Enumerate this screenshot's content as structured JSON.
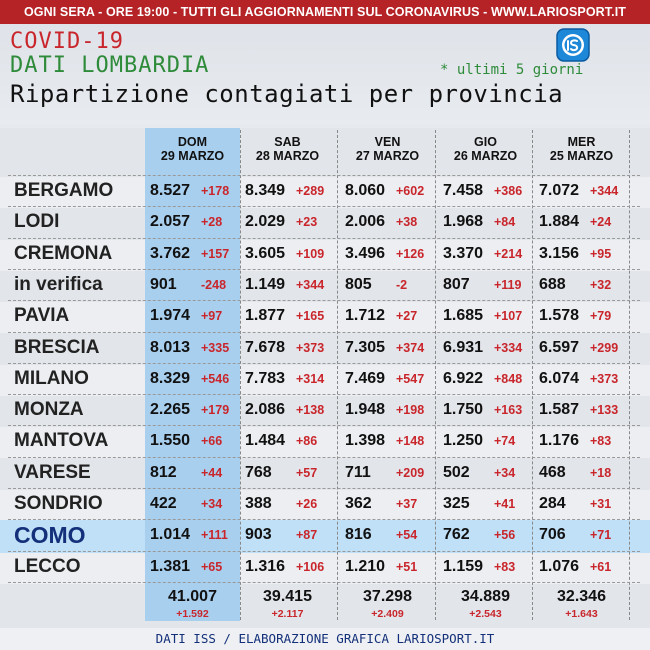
{
  "banner": "OGNI SERA - ORE 19:00 - TUTTI GLI AGGIORNAMENTI SUL CORONAVIRUS - WWW.LARIOSPORT.IT",
  "title_line1": "COVID-19",
  "title_line2": "DATI LOMBARDIA",
  "title_line3": "Ripartizione contagiati per provincia",
  "note": "* ultimi 5 giorni",
  "logo_icon": "lariosport-logo-icon",
  "colors": {
    "red": "#c9262c",
    "green": "#2e8b3a",
    "highlight": "#a9cfee",
    "banner": "#b52327"
  },
  "columns": [
    {
      "day": "DOM",
      "date": "29 MARZO"
    },
    {
      "day": "SAB",
      "date": "28 MARZO"
    },
    {
      "day": "VEN",
      "date": "27 MARZO"
    },
    {
      "day": "GIO",
      "date": "26 MARZO"
    },
    {
      "day": "MER",
      "date": "25 MARZO"
    }
  ],
  "rows": [
    {
      "name": "BERGAMO",
      "cells": [
        [
          "8.527",
          "+178"
        ],
        [
          "8.349",
          "+289"
        ],
        [
          "8.060",
          "+602"
        ],
        [
          "7.458",
          "+386"
        ],
        [
          "7.072",
          "+344"
        ]
      ]
    },
    {
      "name": "LODI",
      "cells": [
        [
          "2.057",
          "+28"
        ],
        [
          "2.029",
          "+23"
        ],
        [
          "2.006",
          "+38"
        ],
        [
          "1.968",
          "+84"
        ],
        [
          "1.884",
          "+24"
        ]
      ]
    },
    {
      "name": "CREMONA",
      "cells": [
        [
          "3.762",
          "+157"
        ],
        [
          "3.605",
          "+109"
        ],
        [
          "3.496",
          "+126"
        ],
        [
          "3.370",
          "+214"
        ],
        [
          "3.156",
          "+95"
        ]
      ]
    },
    {
      "name": "in verifica",
      "cells": [
        [
          "901",
          "-248"
        ],
        [
          "1.149",
          "+344"
        ],
        [
          "805",
          "-2"
        ],
        [
          "807",
          "+119"
        ],
        [
          "688",
          "+32"
        ]
      ]
    },
    {
      "name": "PAVIA",
      "cells": [
        [
          "1.974",
          "+97"
        ],
        [
          "1.877",
          "+165"
        ],
        [
          "1.712",
          "+27"
        ],
        [
          "1.685",
          "+107"
        ],
        [
          "1.578",
          "+79"
        ]
      ]
    },
    {
      "name": "BRESCIA",
      "cells": [
        [
          "8.013",
          "+335"
        ],
        [
          "7.678",
          "+373"
        ],
        [
          "7.305",
          "+374"
        ],
        [
          "6.931",
          "+334"
        ],
        [
          "6.597",
          "+299"
        ]
      ]
    },
    {
      "name": "MILANO",
      "cells": [
        [
          "8.329",
          "+546"
        ],
        [
          "7.783",
          "+314"
        ],
        [
          "7.469",
          "+547"
        ],
        [
          "6.922",
          "+848"
        ],
        [
          "6.074",
          "+373"
        ]
      ]
    },
    {
      "name": "MONZA",
      "cells": [
        [
          "2.265",
          "+179"
        ],
        [
          "2.086",
          "+138"
        ],
        [
          "1.948",
          "+198"
        ],
        [
          "1.750",
          "+163"
        ],
        [
          "1.587",
          "+133"
        ]
      ]
    },
    {
      "name": "MANTOVA",
      "cells": [
        [
          "1.550",
          "+66"
        ],
        [
          "1.484",
          "+86"
        ],
        [
          "1.398",
          "+148"
        ],
        [
          "1.250",
          "+74"
        ],
        [
          "1.176",
          "+83"
        ]
      ]
    },
    {
      "name": "VARESE",
      "cells": [
        [
          "812",
          "+44"
        ],
        [
          "768",
          "+57"
        ],
        [
          "711",
          "+209"
        ],
        [
          "502",
          "+34"
        ],
        [
          "468",
          "+18"
        ]
      ]
    },
    {
      "name": "SONDRIO",
      "cells": [
        [
          "422",
          "+34"
        ],
        [
          "388",
          "+26"
        ],
        [
          "362",
          "+37"
        ],
        [
          "325",
          "+41"
        ],
        [
          "284",
          "+31"
        ]
      ]
    },
    {
      "name": "COMO",
      "cells": [
        [
          "1.014",
          "+111"
        ],
        [
          "903",
          "+87"
        ],
        [
          "816",
          "+54"
        ],
        [
          "762",
          "+56"
        ],
        [
          "706",
          "+71"
        ]
      ]
    },
    {
      "name": "LECCO",
      "cells": [
        [
          "1.381",
          "+65"
        ],
        [
          "1.316",
          "+106"
        ],
        [
          "1.210",
          "+51"
        ],
        [
          "1.159",
          "+83"
        ],
        [
          "1.076",
          "+61"
        ]
      ]
    }
  ],
  "totals": [
    {
      "total": "41.007",
      "delta": "+1.592"
    },
    {
      "total": "39.415",
      "delta": "+2.117"
    },
    {
      "total": "37.298",
      "delta": "+2.409"
    },
    {
      "total": "34.889",
      "delta": "+2.543"
    },
    {
      "total": "32.346",
      "delta": "+1.643"
    }
  ],
  "footer": "DATI ISS / ELABORAZIONE GRAFICA LARIOSPORT.IT"
}
